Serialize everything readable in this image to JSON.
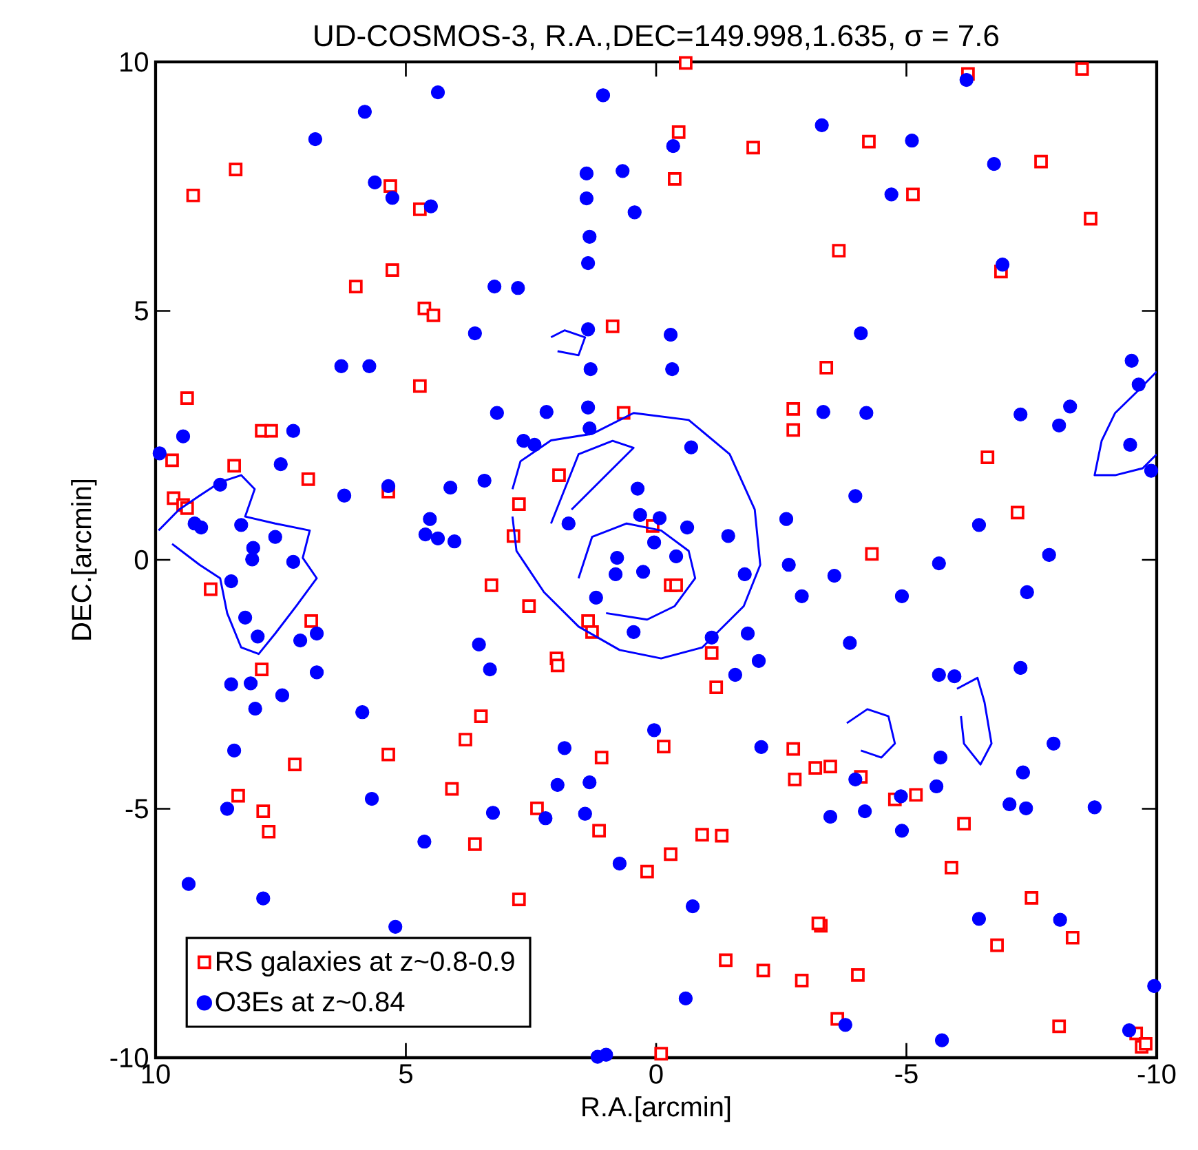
{
  "chart_data": {
    "type": "scatter",
    "title": "UD-COSMOS-3, R.A.,DEC=149.998,1.635, σ = 7.6",
    "xlabel": "R.A.[arcmin]",
    "ylabel": "DEC.[arcmin]",
    "xlim": [
      10,
      -10
    ],
    "ylim": [
      -10,
      10
    ],
    "xticks": [
      10,
      5,
      0,
      -5,
      -10
    ],
    "yticks": [
      -10,
      -5,
      0,
      5,
      10
    ],
    "grid": false,
    "legend": "bottom left",
    "series": [
      {
        "name": "RS galaxies at z~0.8-0.9",
        "color": "#ff0000",
        "marker": "square",
        "x": [
          9.25,
          8.4,
          9.37,
          9.67,
          9.64,
          9.45,
          9.37,
          8.43,
          7.88,
          7.69,
          8.9,
          7.88,
          8.35,
          7.85,
          7.74,
          7.22,
          6.0,
          5.31,
          5.27,
          6.95,
          5.35,
          6.89,
          5.35,
          4.72,
          4.63,
          4.45,
          4.72,
          3.29,
          2.74,
          2.85,
          2.54,
          3.5,
          3.81,
          4.08,
          3.62,
          2.38,
          2.74,
          1.99,
          1.97,
          1.94,
          1.36,
          1.28,
          1.09,
          0.87,
          1.14,
          0.65,
          0.18,
          0.07,
          -0.15,
          -0.1,
          -0.29,
          -0.4,
          -0.29,
          -0.45,
          -0.37,
          -0.59,
          -1.11,
          -1.2,
          -1.39,
          -0.92,
          -1.31,
          -1.94,
          -2.14,
          -2.74,
          -2.74,
          -2.74,
          -2.77,
          -2.91,
          -3.18,
          -3.48,
          -3.29,
          -3.24,
          -3.62,
          -3.4,
          -3.65,
          -4.03,
          -4.09,
          -4.25,
          -4.31,
          -4.77,
          -5.19,
          -5.13,
          -5.9,
          -6.23,
          -6.15,
          -6.62,
          -6.81,
          -6.89,
          -7.22,
          -7.5,
          -7.69,
          -8.05,
          -8.32,
          -8.51,
          -8.68,
          -9.59,
          -9.7,
          -9.78
        ],
        "values": [
          7.32,
          7.84,
          3.25,
          2.0,
          1.24,
          1.1,
          1.04,
          1.89,
          2.59,
          2.59,
          -0.59,
          -2.2,
          -4.74,
          -5.05,
          -5.46,
          -4.11,
          5.49,
          7.51,
          5.82,
          1.62,
          1.37,
          -1.23,
          -3.91,
          7.04,
          5.05,
          4.91,
          3.49,
          -0.51,
          1.12,
          0.48,
          -0.93,
          -3.14,
          -3.61,
          -4.6,
          -5.71,
          -4.99,
          -6.82,
          -1.98,
          -2.12,
          1.7,
          -1.23,
          -1.45,
          -3.97,
          4.69,
          -5.44,
          2.95,
          -6.26,
          0.68,
          -3.75,
          -9.92,
          -0.51,
          -0.51,
          -5.91,
          8.59,
          7.65,
          9.98,
          -1.87,
          -2.56,
          -8.04,
          -5.52,
          -5.54,
          8.28,
          -8.25,
          3.03,
          2.61,
          -3.8,
          -4.41,
          -8.45,
          -4.18,
          -4.15,
          -7.35,
          -7.3,
          -9.22,
          3.86,
          6.21,
          -8.34,
          -4.36,
          8.4,
          0.12,
          -4.81,
          -4.72,
          7.34,
          -6.18,
          9.76,
          -5.3,
          2.06,
          -7.74,
          5.79,
          0.95,
          -6.79,
          8.0,
          -9.37,
          -7.59,
          9.86,
          6.85,
          -9.51,
          -9.78,
          -9.72
        ]
      },
      {
        "name": "O3Es at z~0.84",
        "color": "#0000ff",
        "marker": "circle",
        "x": [
          9.34,
          9.45,
          9.09,
          9.22,
          8.71,
          8.49,
          8.29,
          8.07,
          8.21,
          7.96,
          8.1,
          8.01,
          8.49,
          8.43,
          7.47,
          7.5,
          7.25,
          7.61,
          8.05,
          7.25,
          7.11,
          6.78,
          6.78,
          8.57,
          7.85,
          6.81,
          6.23,
          6.29,
          5.87,
          5.73,
          5.82,
          5.62,
          5.27,
          5.35,
          5.68,
          5.21,
          4.63,
          4.52,
          4.11,
          4.61,
          4.36,
          4.03,
          4.5,
          4.36,
          3.62,
          3.23,
          2.76,
          3.18,
          3.43,
          2.65,
          2.43,
          3.54,
          3.32,
          3.26,
          2.21,
          1.97,
          1.83,
          1.75,
          2.19,
          1.33,
          1.36,
          1.31,
          1.36,
          1.33,
          1.39,
          1.39,
          1.36,
          0.81,
          1.2,
          1.06,
          0.67,
          0.43,
          0.78,
          0.26,
          0.45,
          0.04,
          -0.07,
          -0.4,
          -0.62,
          0.32,
          0.37,
          -0.29,
          -0.32,
          -0.34,
          -0.7,
          0.04,
          0.73,
          -0.73,
          -0.59,
          1.17,
          1.0,
          1.33,
          1.42,
          -1.11,
          -1.58,
          -1.77,
          -1.44,
          -2.05,
          -1.83,
          -2.1,
          -2.6,
          -2.65,
          -2.91,
          -3.31,
          -3.34,
          -3.48,
          -3.56,
          -4.09,
          -4.2,
          -3.98,
          -3.87,
          -3.78,
          -3.98,
          -4.17,
          -4.91,
          -4.89,
          -4.7,
          -5.11,
          -4.91,
          -5.65,
          -5.6,
          -5.68,
          -5.71,
          -5.65,
          -5.96,
          -6.2,
          -6.45,
          -6.45,
          -6.75,
          -6.92,
          -7.28,
          -7.28,
          -7.33,
          -7.41,
          -7.06,
          -7.39,
          -7.85,
          -7.94,
          -8.05,
          -8.27,
          -8.07,
          -8.76,
          -9.5,
          -9.47,
          -9.64,
          -9.89,
          -9.45,
          -9.95,
          9.92
        ],
        "values": [
          -6.51,
          2.48,
          0.65,
          0.73,
          1.51,
          -0.43,
          0.7,
          0.01,
          -1.16,
          -1.54,
          -2.48,
          -2.99,
          -2.5,
          -3.83,
          -2.72,
          1.92,
          2.59,
          0.46,
          0.24,
          -0.04,
          -1.62,
          -1.48,
          -2.26,
          -5.0,
          -6.8,
          8.45,
          1.29,
          3.89,
          -3.06,
          3.89,
          9.0,
          7.58,
          7.27,
          1.48,
          -4.8,
          -7.37,
          -5.66,
          0.82,
          1.45,
          0.51,
          0.43,
          0.37,
          7.1,
          9.39,
          4.55,
          5.49,
          5.46,
          2.95,
          1.59,
          2.39,
          2.31,
          -1.7,
          -2.2,
          -5.08,
          -5.19,
          -4.52,
          -3.78,
          0.73,
          2.97,
          2.64,
          3.06,
          3.83,
          4.63,
          6.49,
          7.26,
          7.76,
          5.96,
          -0.29,
          -0.76,
          9.33,
          7.81,
          6.98,
          0.04,
          -0.24,
          -1.45,
          0.35,
          0.84,
          0.07,
          0.65,
          0.9,
          1.43,
          4.52,
          3.83,
          8.31,
          2.26,
          -3.42,
          -6.1,
          -6.96,
          -8.81,
          -9.98,
          -9.94,
          -4.47,
          -5.1,
          -1.56,
          -2.31,
          -0.29,
          0.48,
          -2.03,
          -1.48,
          -3.76,
          0.82,
          -0.1,
          -0.73,
          8.73,
          2.97,
          -5.16,
          -0.32,
          4.55,
          2.95,
          1.28,
          -1.67,
          -9.34,
          -4.41,
          -5.05,
          -5.44,
          -4.75,
          7.34,
          8.42,
          -0.73,
          -0.07,
          -4.55,
          -3.97,
          -9.65,
          -2.31,
          -2.34,
          9.64,
          -7.21,
          0.7,
          7.95,
          5.93,
          -2.17,
          2.92,
          -4.27,
          -0.65,
          -4.91,
          -4.99,
          0.1,
          -3.69,
          2.7,
          3.08,
          -7.23,
          -4.97,
          4.0,
          2.31,
          3.52,
          1.79,
          -9.45,
          -8.56,
          2.14
        ]
      },
      {
        "type": "line",
        "color": "#0000ff",
        "x": [
          2.87,
          2.71,
          2.1,
          1.28,
          0.45,
          -0.65,
          -1.47,
          -1.97,
          -2.08,
          -1.75,
          -0.92,
          -0.1,
          0.73,
          1.55,
          2.24,
          2.79,
          2.87
        ],
        "values": [
          1.42,
          1.98,
          2.4,
          2.53,
          2.95,
          2.81,
          2.12,
          1.01,
          -0.1,
          -0.93,
          -1.76,
          -1.98,
          -1.81,
          -1.34,
          -0.65,
          0.18,
          0.87
        ]
      },
      {
        "type": "line",
        "color": "#0000ff",
        "x": [
          1.55,
          1.28,
          0.59,
          -0.1,
          -0.65,
          -0.78,
          -0.37,
          0.18,
          1.0
        ],
        "values": [
          -0.37,
          0.46,
          0.73,
          0.59,
          0.18,
          -0.37,
          -0.93,
          -1.2,
          -1.07
        ]
      },
      {
        "type": "line",
        "color": "#0000ff",
        "x": [
          2.1,
          1.55,
          0.87,
          0.45,
          1.0,
          1.69
        ],
        "values": [
          0.73,
          2.12,
          2.39,
          2.25,
          1.7,
          1.01
        ]
      },
      {
        "type": "line",
        "color": "#0000ff",
        "x": [
          9.94,
          9.53,
          9.12,
          8.71,
          8.29,
          8.02,
          8.21,
          7.61,
          6.92,
          7.06,
          6.78,
          7.19,
          7.61,
          7.94,
          8.29,
          8.57,
          8.71,
          9.12,
          9.67
        ],
        "values": [
          0.59,
          1.01,
          1.29,
          1.56,
          1.7,
          1.42,
          0.87,
          0.73,
          0.59,
          0.04,
          -0.37,
          -0.93,
          -1.48,
          -1.89,
          -1.76,
          -1.07,
          -0.37,
          -0.1,
          0.32
        ]
      },
      {
        "type": "line",
        "color": "#0000ff",
        "x": [
          -10.0,
          -9.59,
          -9.17,
          -8.9,
          -8.76,
          -9.17,
          -9.72,
          -10.0
        ],
        "values": [
          3.78,
          3.36,
          2.95,
          2.39,
          1.7,
          1.7,
          1.84,
          2.12
        ]
      },
      {
        "type": "line",
        "color": "#0000ff",
        "x": [
          2.1,
          1.83,
          1.42,
          1.55,
          1.97
        ],
        "values": [
          4.47,
          4.61,
          4.47,
          4.11,
          4.19
        ]
      },
      {
        "type": "line",
        "color": "#0000ff",
        "x": [
          -3.81,
          -4.22,
          -4.64,
          -4.77,
          -4.5,
          -4.09
        ],
        "values": [
          -3.28,
          -3.0,
          -3.14,
          -3.69,
          -3.97,
          -3.83
        ]
      },
      {
        "type": "line",
        "color": "#0000ff",
        "x": [
          -6.01,
          -6.42,
          -6.56,
          -6.7,
          -6.48,
          -6.15,
          -6.09
        ],
        "values": [
          -2.59,
          -2.37,
          -2.86,
          -3.69,
          -4.11,
          -3.69,
          -3.14
        ]
      }
    ]
  }
}
